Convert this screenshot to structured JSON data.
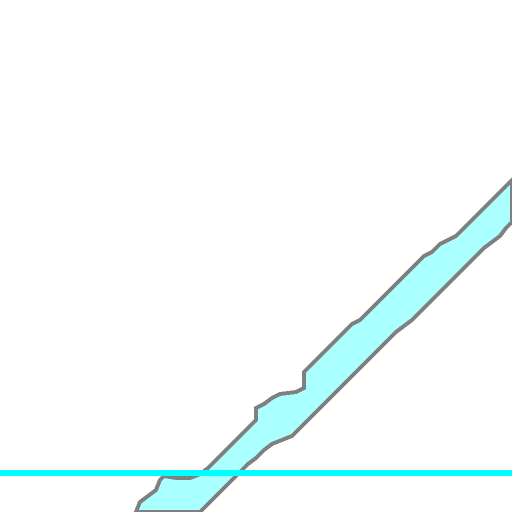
{
  "canvas": {
    "background_color": "#ffffff"
  },
  "brush_stroke": {
    "fill_color": "#aaffff",
    "outline_color": "#808080",
    "icon": "pixel-brush-stroke"
  },
  "horizontal_line": {
    "color": "#00ffff"
  }
}
